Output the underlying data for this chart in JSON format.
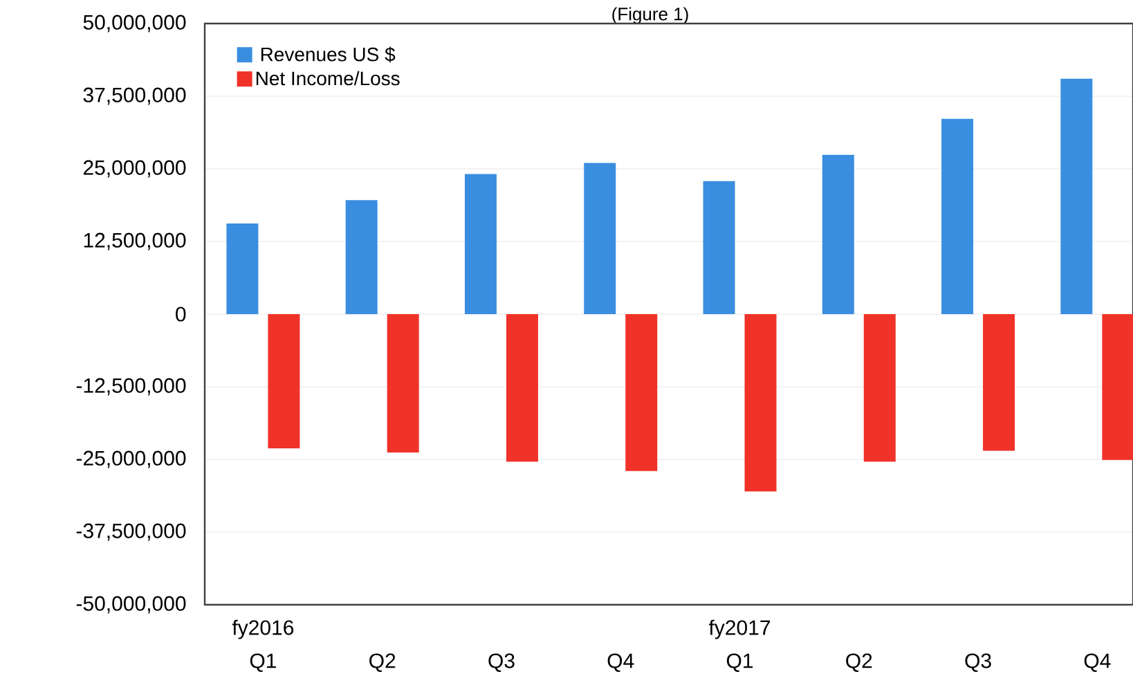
{
  "chart_data": {
    "type": "bar",
    "title": "(Figure 1)",
    "categories": [
      "Q1",
      "Q2",
      "Q3",
      "Q4",
      "Q1",
      "Q2",
      "Q3",
      "Q4"
    ],
    "series": [
      {
        "name": "Revenues US $",
        "color": "#3a8ee0",
        "values": [
          15600000,
          19600000,
          24100000,
          26000000,
          22900000,
          27400000,
          33600000,
          40500000
        ]
      },
      {
        "name": "Net Income/Loss",
        "color": "#f03228",
        "values": [
          -23100000,
          -23800000,
          -25400000,
          -27000000,
          -30500000,
          -25400000,
          -23500000,
          -25100000
        ]
      }
    ],
    "ylim": [
      -50000000,
      50000000
    ],
    "yticks": [
      {
        "value": -50000000,
        "label": "-50,000,000"
      },
      {
        "value": -37500000,
        "label": "-37,500,000"
      },
      {
        "value": -25000000,
        "label": "-25,000,000"
      },
      {
        "value": -12500000,
        "label": "-12,500,000"
      },
      {
        "value": 0,
        "label": "0"
      },
      {
        "value": 12500000,
        "label": "12,500,000"
      },
      {
        "value": 25000000,
        "label": "25,000,000"
      },
      {
        "value": 37500000,
        "label": "37,500,000"
      },
      {
        "value": 50000000,
        "label": "50,000,000"
      }
    ],
    "annotations": [
      "fy2016",
      "fy2017"
    ],
    "grid": "y",
    "legend": "top left"
  }
}
